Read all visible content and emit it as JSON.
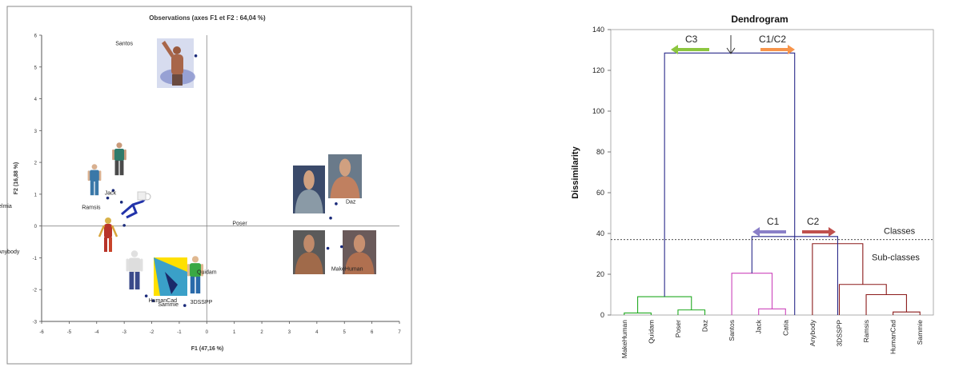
{
  "chart_data": [
    {
      "type": "scatter",
      "title": "Observations (axes F1 et F2 : 64,04 %)",
      "xlabel": "F1 (47,16 %)",
      "ylabel": "F2 (16,88 %)",
      "xlim": [
        -6,
        7
      ],
      "ylim": [
        -3,
        6
      ],
      "xticks": [
        "-6",
        "-5",
        "-4",
        "-3",
        "-2",
        "-1",
        "0",
        "1",
        "2",
        "3",
        "4",
        "5",
        "6",
        "7"
      ],
      "yticks": [
        "-3",
        "-2",
        "-1",
        "0",
        "1",
        "2",
        "3",
        "4",
        "5",
        "6"
      ],
      "point_color": "#1a2a7a",
      "points": [
        {
          "label": "Santos",
          "x": -0.4,
          "y": 5.35
        },
        {
          "label": "Jack",
          "x": -3.4,
          "y": 1.12
        },
        {
          "label": "Delmia",
          "x": -3.6,
          "y": 0.88
        },
        {
          "label": "Ramsis",
          "x": -3.1,
          "y": 0.75
        },
        {
          "label": "Anybody",
          "x": -3.0,
          "y": 0.02
        },
        {
          "label": "Poser",
          "x": 4.5,
          "y": 0.25
        },
        {
          "label": "Daz",
          "x": 4.7,
          "y": 0.7
        },
        {
          "label": "Quidam",
          "x": 4.4,
          "y": -0.7
        },
        {
          "label": "MakeHuman",
          "x": 4.9,
          "y": -0.65
        },
        {
          "label": "HumanCad",
          "x": -2.2,
          "y": -2.2
        },
        {
          "label": "Sammie",
          "x": -1.95,
          "y": -2.35
        },
        {
          "label": "3DSSPP",
          "x": -0.8,
          "y": -2.5
        }
      ]
    },
    {
      "type": "dendrogram",
      "title": "Dendrogram",
      "ylabel": "Dissimilarity",
      "ylim": [
        0,
        140
      ],
      "yticks": [
        "0",
        "20",
        "40",
        "60",
        "80",
        "100",
        "120",
        "140"
      ],
      "leaves": [
        "MakeHuman",
        "Quidam",
        "Poser",
        "Daz",
        "Santos",
        "Jack",
        "Catia",
        "Anybody",
        "3DSSPP",
        "Ramsis",
        "HumanCad",
        "Sammie"
      ],
      "threshold": 37,
      "threshold_labels": {
        "above": "Classes",
        "below": "Sub-classes"
      },
      "annotations": [
        "C3",
        "C1/C2",
        "C1",
        "C2"
      ],
      "colors": {
        "c3": "#22aa22",
        "c1": "#cc44bb",
        "c2": "#8b1a1a",
        "main": "#2a2a8a",
        "arrow_c3": "#8cc63f",
        "arrow_c1c2": "#f7944a",
        "arrow_c1": "#8a7fc8",
        "arrow_c2": "#c0504d"
      },
      "merges": [
        {
          "group": "c3",
          "a": 0,
          "b": 1,
          "h": 1
        },
        {
          "group": "c3",
          "a": 2,
          "b": 3,
          "h": 2.5
        },
        {
          "group": "c3",
          "a": 0.5,
          "b": 2.5,
          "h": 9
        },
        {
          "group": "c1",
          "a": 5,
          "b": 6,
          "h": 3
        },
        {
          "group": "c1",
          "a": 4,
          "b": 5.5,
          "h": 20.5
        },
        {
          "group": "c2",
          "a": 10,
          "b": 11,
          "h": 1.5
        },
        {
          "group": "c2",
          "a": 9,
          "b": 10.5,
          "h": 10
        },
        {
          "group": "c2",
          "a": 8,
          "b": 9.75,
          "h": 15
        },
        {
          "group": "c2",
          "a": 7,
          "b": 8.875,
          "h": 35
        },
        {
          "group": "main",
          "a": 4.75,
          "b": 7.94,
          "h": 38.5
        },
        {
          "group": "main",
          "a": 1.5,
          "b": 6.34,
          "h": 128.5
        }
      ]
    }
  ]
}
